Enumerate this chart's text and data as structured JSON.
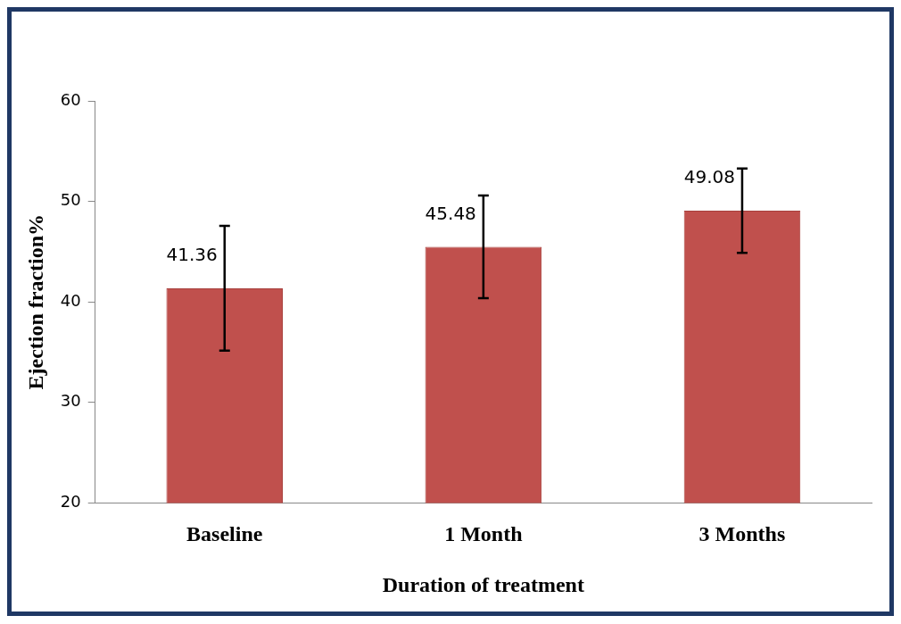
{
  "chart_data": {
    "type": "bar",
    "xlabel": "Duration of treatment",
    "ylabel": "Ejection fraction%",
    "categories": [
      "Baseline",
      "1 Month",
      "3 Months"
    ],
    "values": [
      41.36,
      45.48,
      49.08
    ],
    "color": "#c0504d",
    "errors": [
      6.2,
      5.1,
      4.2
    ],
    "ylim": [
      20,
      60
    ],
    "yticks": [
      20,
      30,
      40,
      50,
      60
    ],
    "grid": false,
    "data_labels": true
  }
}
